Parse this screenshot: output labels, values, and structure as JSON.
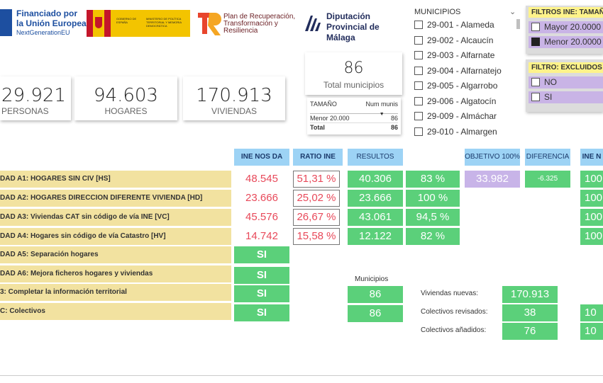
{
  "logos": {
    "eu_line1": "Financiado por",
    "eu_line2": "la Unión Europea",
    "eu_line3": "NextGenerationEU",
    "gob_text1": "GOBIERNO DE ESPAÑA",
    "gob_text2": "MINISTERIO DE POLÍTICA TERRITORIAL Y MEMORIA DEMOCRÁTICA",
    "prtr_text": "Plan de Recuperación, Transformación y Resiliencia",
    "dip_text": "Diputación Provincial de Málaga"
  },
  "kpis": {
    "personas_value": "29.921",
    "personas_label": "PERSONAS",
    "hogares_value": "94.603",
    "hogares_label": "HOGARES",
    "viviendas_value": "170.913",
    "viviendas_label": "VIVIENDAS",
    "total_mun_value": "86",
    "total_mun_label": "Total municipios"
  },
  "size_table": {
    "col1": "TAMAÑO",
    "col2": "Num munis",
    "rows": [
      {
        "label": "Menor 20.000",
        "value": "86"
      },
      {
        "label": "Total",
        "value": "86"
      }
    ]
  },
  "municipios": {
    "header": "MUNICIPIOS",
    "items": [
      "29-001 - Alameda",
      "29-002 - Alcaucín",
      "29-003 - Alfarnate",
      "29-004 - Alfarnatejo",
      "29-005 - Algarrobo",
      "29-006 - Algatocín",
      "29-009 - Almáchar",
      "29-010 - Almargen"
    ]
  },
  "filters": {
    "ine_title": "FILTROS INE: TAMAÑ",
    "ine_options": [
      "Mayor 20.0000",
      "Menor 20.0000"
    ],
    "excl_title": "FILTRO: EXCLUIDOS",
    "excl_options": [
      "NO",
      "SI"
    ]
  },
  "headers": {
    "ine_nos_da": "INE NOS DA",
    "ratio_ine": "RATIO INE",
    "resultados": "RESULTOS",
    "objetivo": "OBJETIVO 100%",
    "diferencia": "DIFERENCIA",
    "ine_right": "INE N"
  },
  "activities": [
    {
      "label": "DAD A1: HOGARES SIN CIV [HS]",
      "ine": "48.545",
      "ratio": "51,31 %",
      "result": "40.306",
      "pct": "83 %",
      "right": "100"
    },
    {
      "label": "DAD A2: HOGARES DIRECCION DIFERENTE VIVIENDA [HD]",
      "ine": "23.666",
      "ratio": "25,02 %",
      "result": "23.666",
      "pct": "100 %",
      "right": "100"
    },
    {
      "label": "DAD A3: Viviendas CAT sin código de vía INE [VC]",
      "ine": "45.576",
      "ratio": "26,67 %",
      "result": "43.061",
      "pct": "94,5 %",
      "right": "100"
    },
    {
      "label": "DAD A4: Hogares sin código de vía Catastro [HV]",
      "ine": "14.742",
      "ratio": "15,58 %",
      "result": "12.122",
      "pct": "82 %",
      "right": "100"
    },
    {
      "label": "DAD A5: Separación hogares",
      "si": "SI"
    },
    {
      "label": "DAD A6: Mejora ficheros hogares y viviendas",
      "si": "SI"
    },
    {
      "label": "3: Completar la información territorial",
      "si": "SI"
    },
    {
      "label": "C: Colectivos",
      "si": "SI"
    }
  ],
  "objetivo_value": "33.982",
  "diferencia_value": "-6.325",
  "bottom": {
    "municipios_label": "Municipios",
    "mun_value1": "86",
    "mun_value2": "86",
    "viviendas_nuevas_label": "Viviendas nuevas:",
    "viviendas_nuevas_value": "170.913",
    "colectivos_revisados_label": "Colectivos revisados:",
    "colectivos_revisados_value": "38",
    "colectivos_anadidos_label": "Colectivos añadidos:",
    "colectivos_anadidos_value": "76",
    "right_value1": "10",
    "right_value2": "10"
  },
  "colors": {
    "header_blue": "#9dd3f5",
    "label_yellow": "#f2e2a0",
    "green": "#5bd07a",
    "red_text": "#e8495a",
    "purple": "#c8b4e8"
  }
}
